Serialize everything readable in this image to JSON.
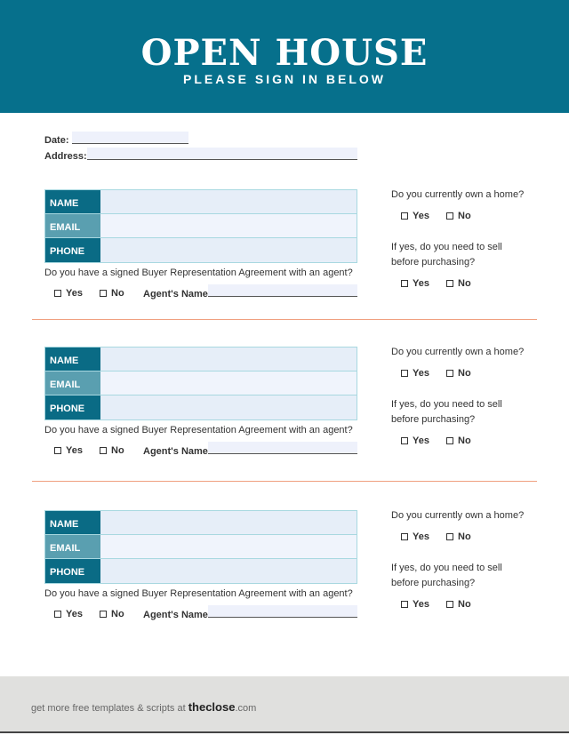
{
  "header": {
    "title": "OPEN HOUSE",
    "subtitle": "PLEASE SIGN IN BELOW",
    "color": "#06708c"
  },
  "form": {
    "date_label": "Date:",
    "address_label": "Address:"
  },
  "entry": {
    "name": "NAME",
    "email": "EMAIL",
    "phone": "PHONE",
    "agreement_q": "Do you have a signed Buyer Representation Agreement with an agent?",
    "yes": "Yes",
    "no": "No",
    "agent_label": "Agent's Name:",
    "own_q": "Do you currently own a home?",
    "sell_q1": "If yes, do you need to sell",
    "sell_q2": "before purchasing?"
  },
  "entries": 3,
  "footer": {
    "text": "get more free templates & scripts at ",
    "brand_bold": "theclose",
    "brand_suffix": ".com"
  }
}
